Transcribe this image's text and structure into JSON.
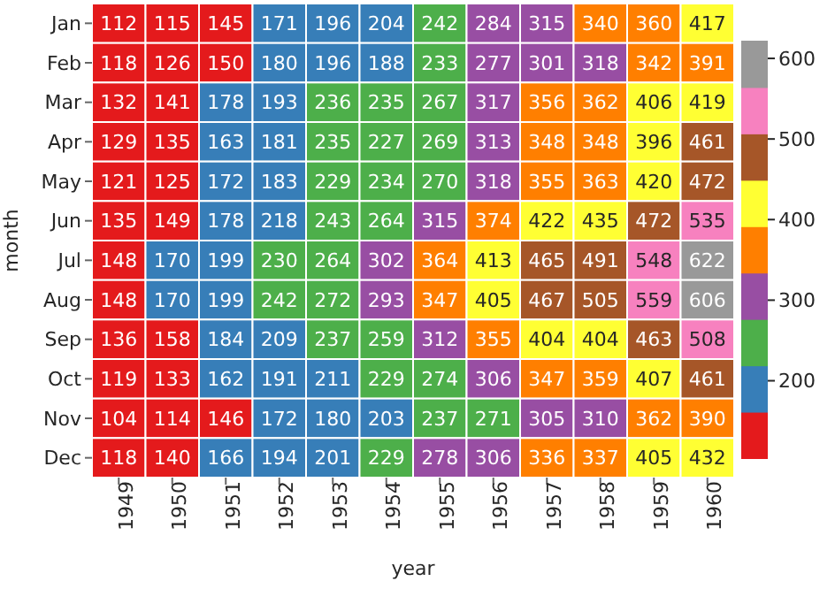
{
  "chart_data": {
    "type": "heatmap",
    "xlabel": "year",
    "ylabel": "month",
    "categories": [
      "1949",
      "1950",
      "1951",
      "1952",
      "1953",
      "1954",
      "1955",
      "1956",
      "1957",
      "1958",
      "1959",
      "1960"
    ],
    "y_categories": [
      "Jan",
      "Feb",
      "Mar",
      "Apr",
      "May",
      "Jun",
      "Jul",
      "Aug",
      "Sep",
      "Oct",
      "Nov",
      "Dec"
    ],
    "cells": [
      [
        112,
        115,
        145,
        171,
        196,
        204,
        242,
        284,
        315,
        340,
        360,
        417
      ],
      [
        118,
        126,
        150,
        180,
        196,
        188,
        233,
        277,
        301,
        318,
        342,
        391
      ],
      [
        132,
        141,
        178,
        193,
        236,
        235,
        267,
        317,
        356,
        362,
        406,
        419
      ],
      [
        129,
        135,
        163,
        181,
        235,
        227,
        269,
        313,
        348,
        348,
        396,
        461
      ],
      [
        121,
        125,
        172,
        183,
        229,
        234,
        270,
        318,
        355,
        363,
        420,
        472
      ],
      [
        135,
        149,
        178,
        218,
        243,
        264,
        315,
        374,
        422,
        435,
        472,
        535
      ],
      [
        148,
        170,
        199,
        230,
        264,
        302,
        364,
        413,
        465,
        491,
        548,
        622
      ],
      [
        148,
        170,
        199,
        242,
        272,
        293,
        347,
        405,
        467,
        505,
        559,
        606
      ],
      [
        136,
        158,
        184,
        209,
        237,
        259,
        312,
        355,
        404,
        404,
        463,
        508
      ],
      [
        119,
        133,
        162,
        191,
        211,
        229,
        274,
        306,
        347,
        359,
        407,
        461
      ],
      [
        104,
        114,
        146,
        172,
        180,
        203,
        237,
        271,
        305,
        310,
        362,
        390
      ],
      [
        118,
        140,
        166,
        194,
        201,
        229,
        278,
        306,
        336,
        337,
        405,
        432
      ]
    ],
    "data_labels": true,
    "colors": [
      "#e41a1c",
      "#377eb8",
      "#4daf4a",
      "#984ea3",
      "#ff7f00",
      "#ffff33",
      "#a65628",
      "#f781bf",
      "#999999"
    ],
    "clim": [
      104,
      622
    ],
    "cticks": [
      200,
      300,
      400,
      500,
      600
    ]
  }
}
